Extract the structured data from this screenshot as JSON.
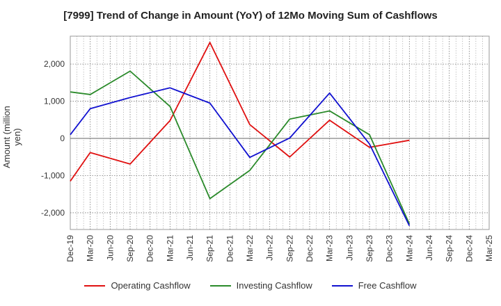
{
  "chart_data": {
    "type": "line",
    "title": "[7999]  Trend of Change in Amount (YoY) of 12Mo Moving Sum of Cashflows",
    "xlabel": "",
    "ylabel": "Amount (million yen)",
    "ylim": [
      -2450,
      2750
    ],
    "yticks": [
      -2000,
      -1000,
      0,
      1000,
      2000
    ],
    "ytick_labels": [
      "-2,000",
      "-1,000",
      "0",
      "1,000",
      "2,000"
    ],
    "categories": [
      "Dec-19",
      "Mar-20",
      "Jun-20",
      "Sep-20",
      "Dec-20",
      "Mar-21",
      "Jun-21",
      "Sep-21",
      "Dec-21",
      "Mar-22",
      "Jun-22",
      "Sep-22",
      "Dec-22",
      "Mar-23",
      "Jun-23",
      "Sep-23",
      "Dec-23",
      "Mar-24",
      "Jun-24",
      "Sep-24",
      "Dec-24",
      "Mar-25"
    ],
    "grid": true,
    "legend_position": "bottom",
    "series": [
      {
        "name": "Operating Cashflow",
        "color": "#e01010",
        "values": [
          -1150,
          -380,
          null,
          -690,
          null,
          480,
          null,
          2580,
          null,
          370,
          null,
          -500,
          null,
          490,
          null,
          -240,
          null,
          -50,
          null,
          null,
          null,
          null
        ]
      },
      {
        "name": "Investing Cashflow",
        "color": "#2a8a2a",
        "values": [
          1250,
          1180,
          null,
          1810,
          null,
          860,
          null,
          -1620,
          null,
          -860,
          null,
          520,
          null,
          740,
          null,
          100,
          null,
          -2300,
          null,
          null,
          null,
          null
        ]
      },
      {
        "name": "Free Cashflow",
        "color": "#1010d0",
        "values": [
          100,
          800,
          null,
          1100,
          null,
          1360,
          null,
          950,
          null,
          -510,
          null,
          10,
          null,
          1220,
          null,
          -150,
          null,
          -2350,
          null,
          null,
          null,
          null
        ]
      }
    ]
  }
}
